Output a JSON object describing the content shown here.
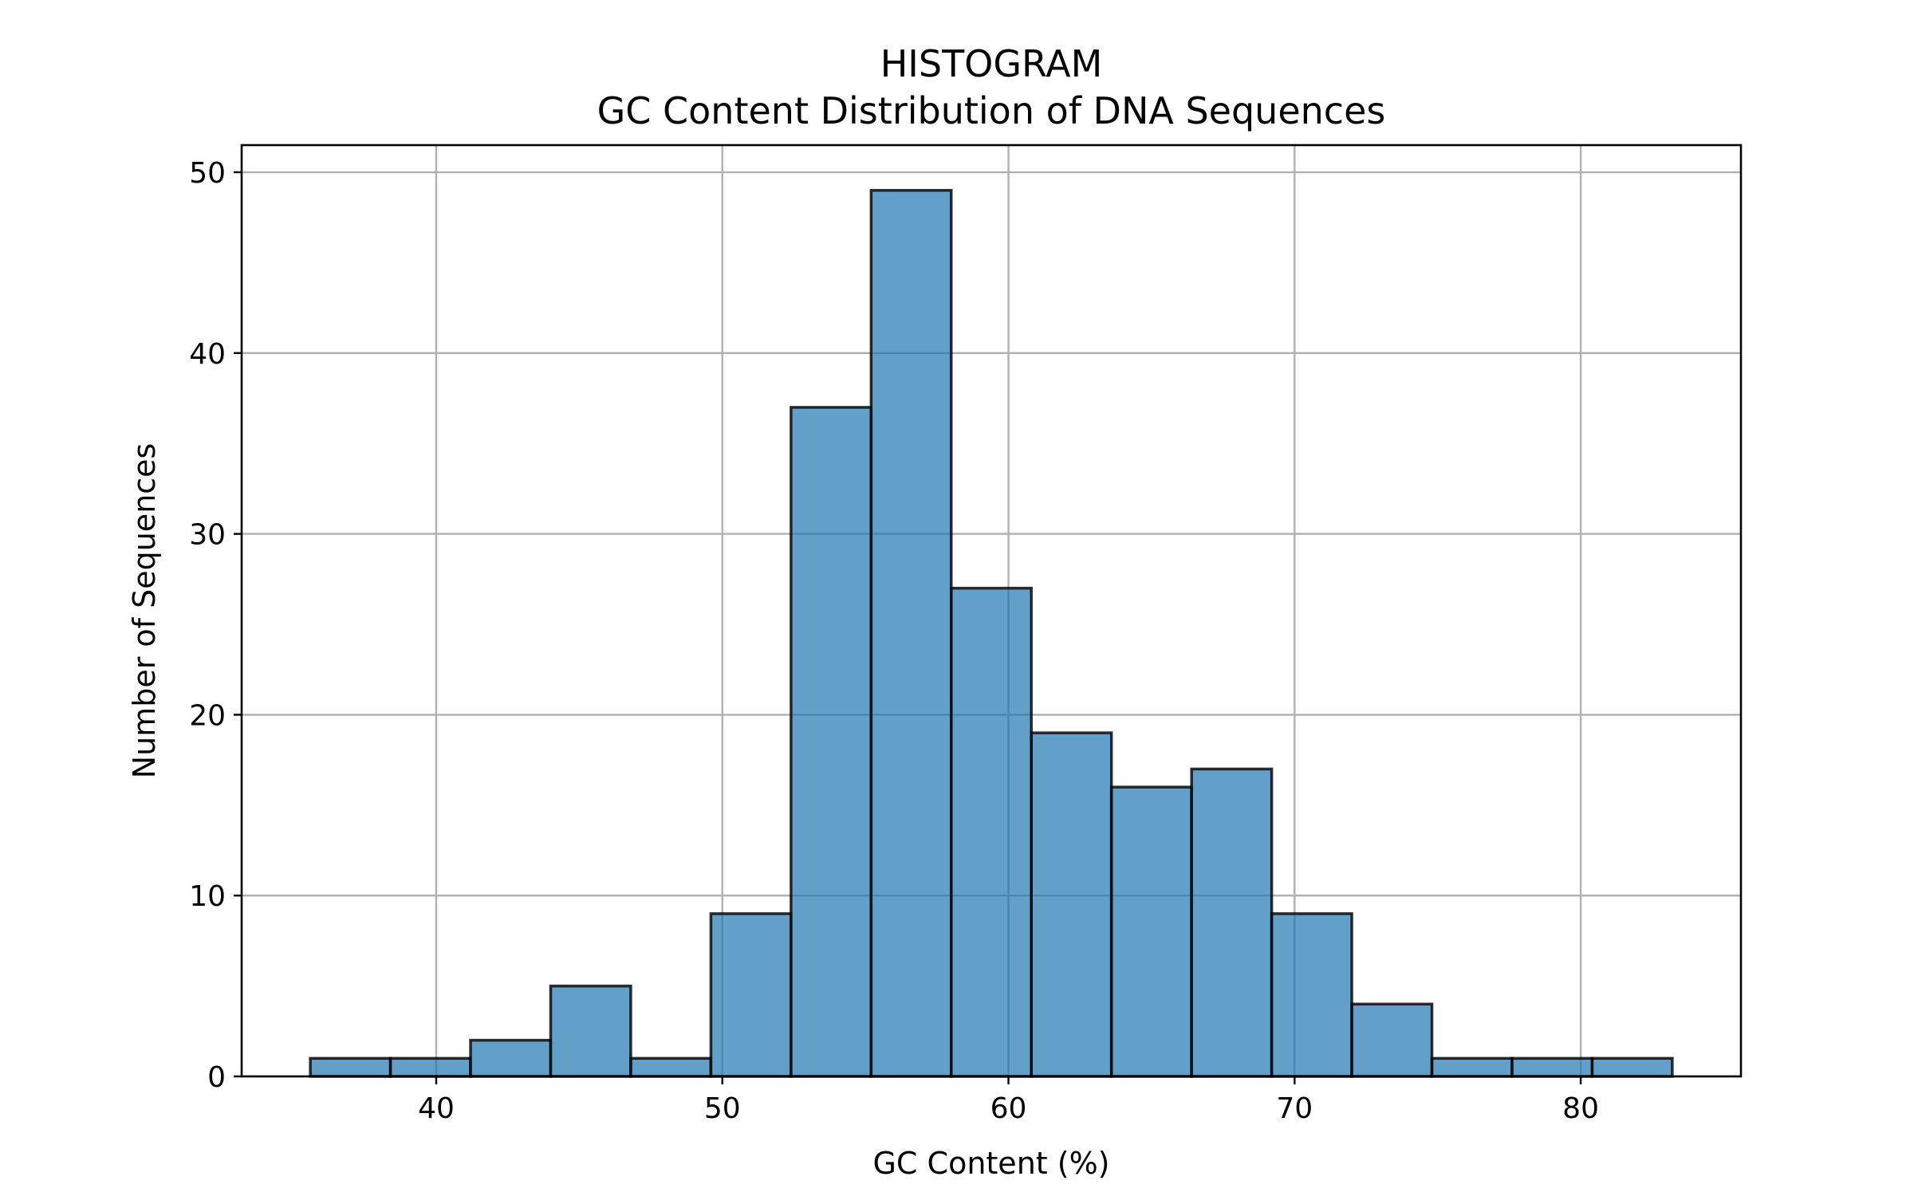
{
  "chart_data": {
    "type": "bar",
    "title": "HISTOGRAM",
    "subtitle": "GC Content Distribution of DNA Sequences",
    "xlabel": "GC Content (%)",
    "ylabel": "Number of Sequences",
    "xlim": [
      33.2,
      85.6
    ],
    "ylim": [
      0,
      51.5
    ],
    "xticks": [
      40,
      50,
      60,
      70,
      80
    ],
    "yticks": [
      0,
      10,
      20,
      30,
      40,
      50
    ],
    "grid": true,
    "bar_color": "#1f77b4",
    "bins": [
      {
        "x0": 35.6,
        "x1": 38.4,
        "count": 1
      },
      {
        "x0": 38.4,
        "x1": 41.2,
        "count": 1
      },
      {
        "x0": 41.2,
        "x1": 44.0,
        "count": 2
      },
      {
        "x0": 44.0,
        "x1": 46.8,
        "count": 5
      },
      {
        "x0": 46.8,
        "x1": 49.6,
        "count": 1
      },
      {
        "x0": 49.6,
        "x1": 52.4,
        "count": 9
      },
      {
        "x0": 52.4,
        "x1": 55.2,
        "count": 37
      },
      {
        "x0": 55.2,
        "x1": 58.0,
        "count": 49
      },
      {
        "x0": 58.0,
        "x1": 60.8,
        "count": 27
      },
      {
        "x0": 60.8,
        "x1": 63.6,
        "count": 19
      },
      {
        "x0": 63.6,
        "x1": 66.4,
        "count": 16
      },
      {
        "x0": 66.4,
        "x1": 69.2,
        "count": 17
      },
      {
        "x0": 69.2,
        "x1": 72.0,
        "count": 9
      },
      {
        "x0": 72.0,
        "x1": 74.8,
        "count": 4
      },
      {
        "x0": 74.8,
        "x1": 77.6,
        "count": 1
      },
      {
        "x0": 77.6,
        "x1": 80.4,
        "count": 1
      },
      {
        "x0": 80.4,
        "x1": 83.2,
        "count": 1
      }
    ]
  }
}
